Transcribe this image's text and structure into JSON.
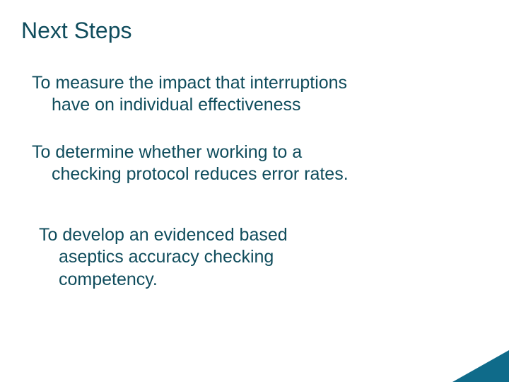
{
  "title": "Next Steps",
  "paragraphs": {
    "p1": {
      "line1": "To measure the impact that interruptions",
      "line2": "have on individual effectiveness"
    },
    "p2": {
      "line1": "To determine whether working to a",
      "line2": "checking protocol reduces error rates."
    },
    "p3": {
      "line1": "To  develop an evidenced based",
      "line2": "aseptics accuracy checking",
      "line3": "competency."
    }
  },
  "colors": {
    "text": "#0f4c5c",
    "accent": "#0f6b8a",
    "background": "#ffffff"
  }
}
